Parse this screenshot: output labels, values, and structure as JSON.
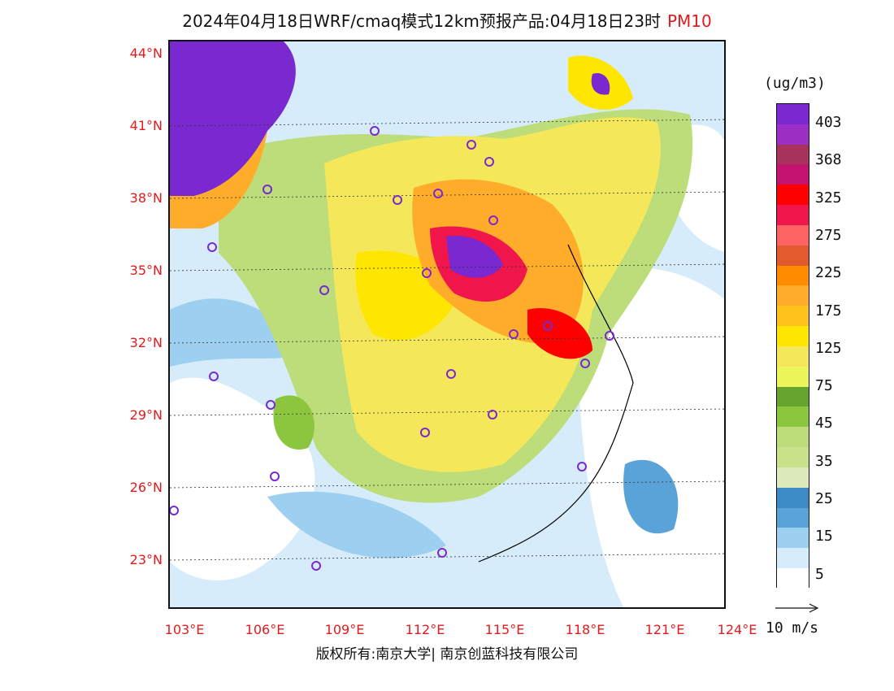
{
  "title": {
    "main": "2024年04月18日WRF/cmaq模式12km预报产品:04月18日23时",
    "pollutant": "PM10",
    "pollutant_color": "#e41a1c"
  },
  "map": {
    "lat_labels": [
      "44°N",
      "41°N",
      "38°N",
      "35°N",
      "32°N",
      "29°N",
      "26°N",
      "23°N"
    ],
    "lon_labels": [
      "103°E",
      "106°E",
      "109°E",
      "112°E",
      "115°E",
      "118°E",
      "121°E",
      "124°E"
    ],
    "label_color": "#e41a1c"
  },
  "legend": {
    "units": "(ug/m3)",
    "colors": [
      "#7a28cf",
      "#9b2fc6",
      "#a8325e",
      "#c4126f",
      "#ff0000",
      "#f0154b",
      "#ff6464",
      "#e35a2e",
      "#ff8c00",
      "#ffac2a",
      "#ffc21a",
      "#ffe600",
      "#f4e85a",
      "#ecf55a",
      "#66a32f",
      "#8cc63f",
      "#bcdd7a",
      "#c8e28a",
      "#dceabd",
      "#3c8bc7",
      "#5aa3d8",
      "#9dcff0",
      "#d6ecfa",
      "#ffffff"
    ],
    "labels": [
      "403",
      "368",
      "325",
      "275",
      "225",
      "175",
      "125",
      "75",
      "45",
      "35",
      "25",
      "15",
      "5"
    ]
  },
  "wind": {
    "reference": "10 m/s"
  },
  "footer": "版权所有:南京大学| 南京创蓝科技有限公司"
}
